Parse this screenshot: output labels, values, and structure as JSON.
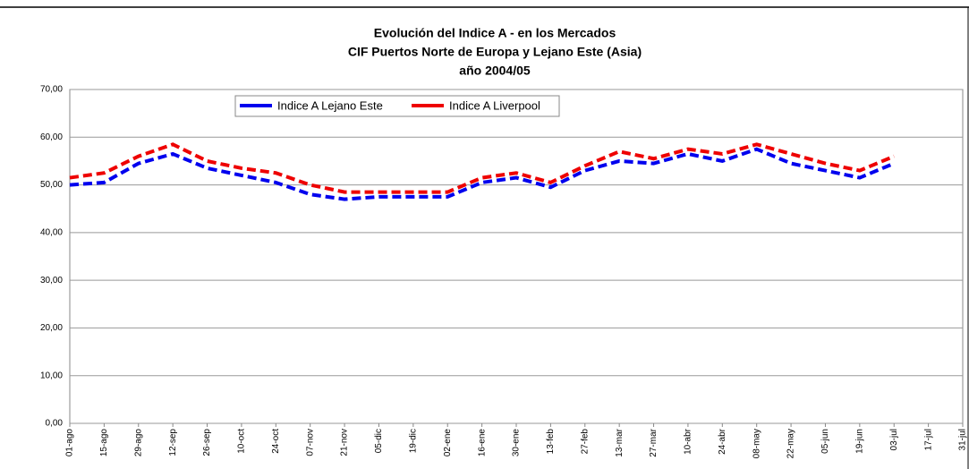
{
  "chart_data": {
    "type": "line",
    "title": "Evolución del Indice A - en los Mercados",
    "subtitle": "CIF Puertos Norte de Europa y Lejano Este (Asia)",
    "subtitle2": "año 2004/05",
    "categories": [
      "01-ago",
      "15-ago",
      "29-ago",
      "12-sep",
      "26-sep",
      "10-oct",
      "24-oct",
      "07-nov",
      "21-nov",
      "05-dic",
      "19-dic",
      "02-ene",
      "16-ene",
      "30-ene",
      "13-feb",
      "27-feb",
      "13-mar",
      "27-mar",
      "10-abr",
      "24-abr",
      "08-may",
      "22-may",
      "05-jun",
      "19-jun",
      "03-jul",
      "17-jul",
      "31-jul"
    ],
    "series": [
      {
        "name": "Indice A  Lejano Este",
        "color": "#0000ee",
        "values": [
          50,
          50.5,
          54.5,
          56.5,
          53.5,
          52,
          50.5,
          48,
          47,
          47.5,
          47.5,
          47.5,
          50.5,
          51.5,
          49.5,
          53,
          55,
          54.5,
          56.5,
          55,
          57.5,
          54.5,
          53,
          51.5,
          54.5,
          null,
          null
        ]
      },
      {
        "name": "Indice A  Liverpool",
        "color": "#ee0000",
        "values": [
          51.5,
          52.5,
          56,
          58.5,
          55,
          53.5,
          52.5,
          50,
          48.5,
          48.5,
          48.5,
          48.5,
          51.5,
          52.5,
          50.5,
          54,
          57,
          55.5,
          57.5,
          56.5,
          58.5,
          56.5,
          54.5,
          53,
          56,
          null,
          null
        ]
      }
    ],
    "ylim": [
      0,
      70
    ],
    "yticks": [
      {
        "value": 0,
        "label": "0,00"
      },
      {
        "value": 10,
        "label": "10,00"
      },
      {
        "value": 20,
        "label": "20,00"
      },
      {
        "value": 30,
        "label": "30,00"
      },
      {
        "value": 40,
        "label": "40,00"
      },
      {
        "value": 50,
        "label": "50,00"
      },
      {
        "value": 60,
        "label": "60,00"
      },
      {
        "value": 70,
        "label": "70,00"
      }
    ],
    "grid": true
  }
}
